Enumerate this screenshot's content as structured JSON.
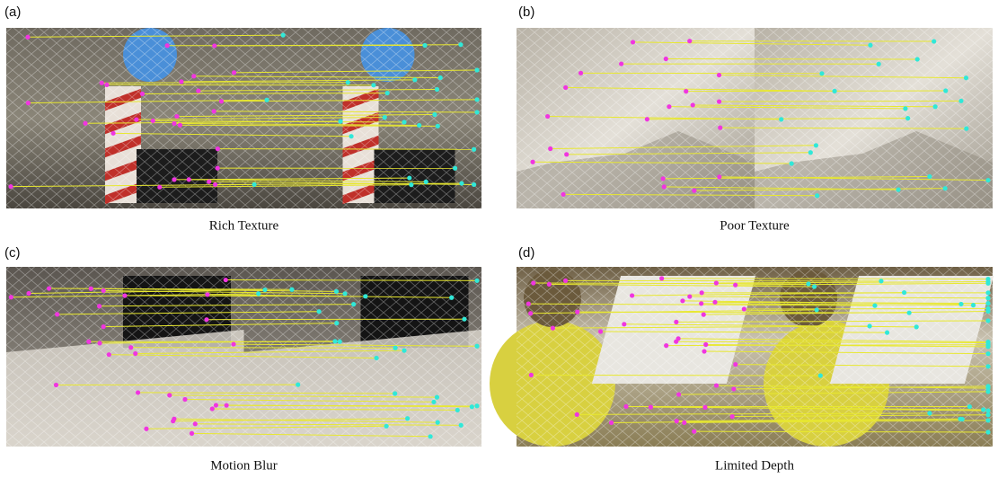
{
  "panels": [
    {
      "label": "(a)",
      "caption": "Rich Texture"
    },
    {
      "label": "(b)",
      "caption": "Poor Texture"
    },
    {
      "label": "(c)",
      "caption": "Motion Blur"
    },
    {
      "label": "(d)",
      "caption": "Limited Depth"
    }
  ]
}
